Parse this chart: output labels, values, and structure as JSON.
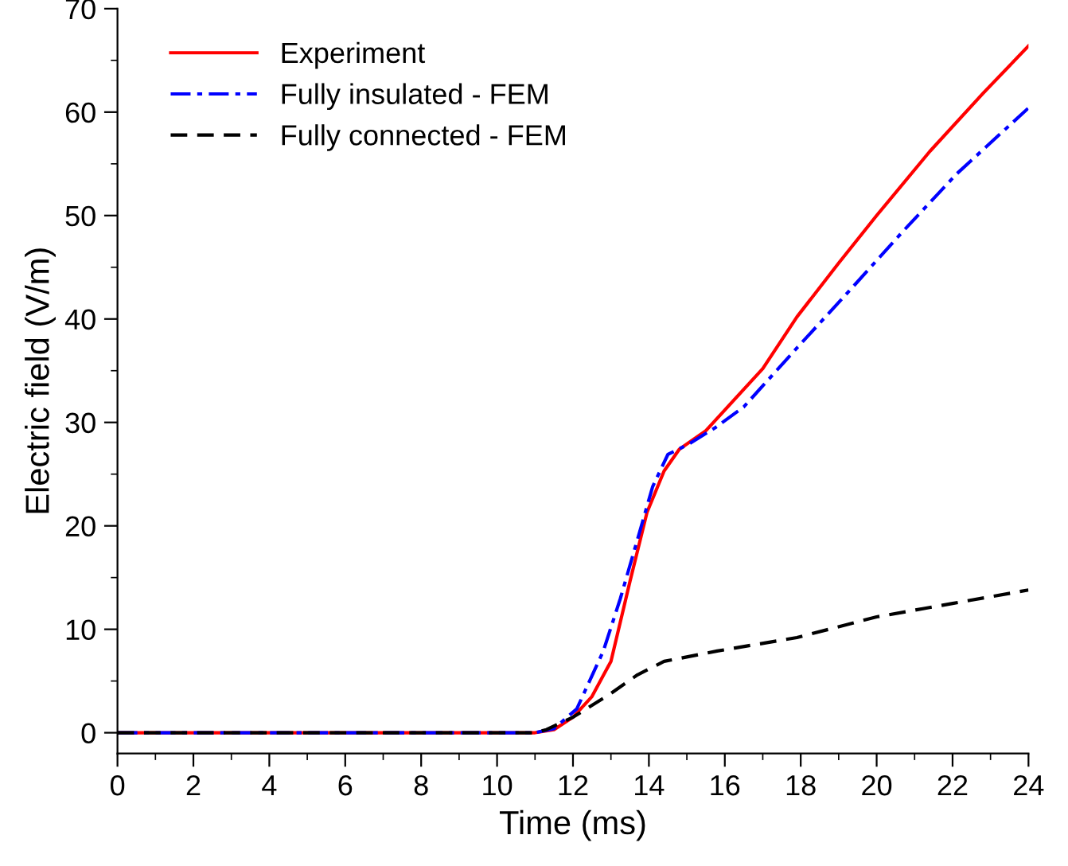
{
  "chart_data": {
    "type": "line",
    "xlabel": "Time (ms)",
    "ylabel": "Electric field (V/m)",
    "xlim": [
      0,
      24
    ],
    "ylim": [
      -2,
      70
    ],
    "xticks": [
      0,
      2,
      4,
      6,
      8,
      10,
      12,
      14,
      16,
      18,
      20,
      22,
      24
    ],
    "yticks": [
      0,
      10,
      20,
      30,
      40,
      50,
      60,
      70
    ],
    "grid": false,
    "legend": "top left",
    "series": [
      {
        "name": "Experiment",
        "color": "#ff0000",
        "line_style": "solid",
        "x": [
          0,
          11,
          11.5,
          12.0,
          12.5,
          13.0,
          13.5,
          13.95,
          14.4,
          14.8,
          15.5,
          16.0,
          17.0,
          17.9,
          19.0,
          20.0,
          21.4,
          22.8,
          24
        ],
        "values": [
          0,
          0,
          0.3,
          1.5,
          3.5,
          6.9,
          14.6,
          21.3,
          25.3,
          27.4,
          29.2,
          31.2,
          35.2,
          40.2,
          45.4,
          50.0,
          56.2,
          61.8,
          66.4
        ]
      },
      {
        "name": "Fully insulated - FEM",
        "color": "#0000ff",
        "line_style": "dashdot",
        "x": [
          0,
          11,
          11.5,
          12.1,
          12.8,
          13.25,
          13.7,
          14.1,
          14.5,
          15.05,
          15.75,
          16.5,
          17.9,
          19.3,
          20.7,
          22.1,
          24
        ],
        "values": [
          0,
          0,
          0.4,
          2.3,
          7.9,
          13.0,
          18.7,
          23.8,
          26.9,
          27.9,
          29.5,
          31.5,
          37.2,
          42.8,
          48.5,
          54.0,
          60.4
        ]
      },
      {
        "name": "Fully connected - FEM",
        "color": "#000000",
        "line_style": "dashed",
        "x": [
          0,
          11,
          11.3,
          12.0,
          13.0,
          13.7,
          14.4,
          15.8,
          17.9,
          20.0,
          22.0,
          24
        ],
        "values": [
          0,
          0,
          0.3,
          1.5,
          3.8,
          5.6,
          6.9,
          7.9,
          9.2,
          11.2,
          12.5,
          13.8
        ]
      }
    ]
  }
}
